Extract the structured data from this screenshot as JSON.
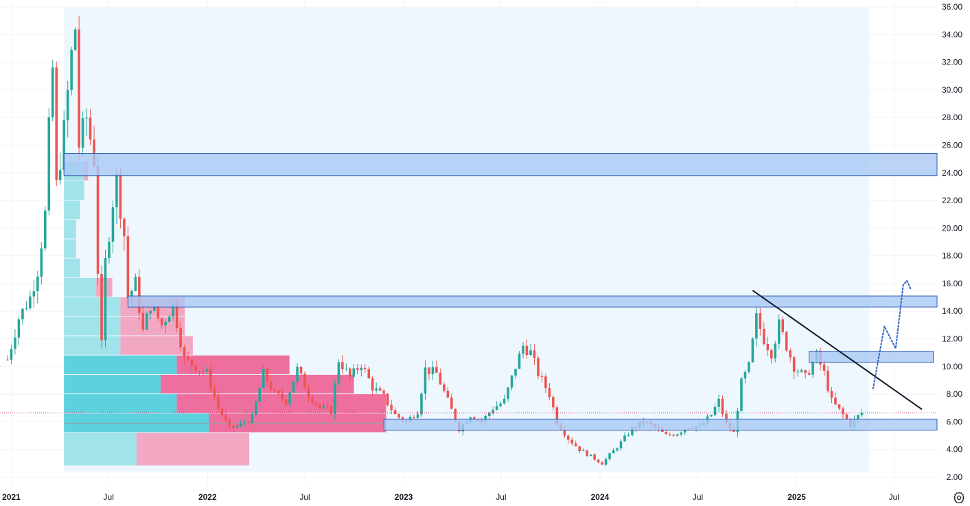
{
  "colors": {
    "up": "#26a69a",
    "down": "#ef5350",
    "zone_fill": "#a9c8f5",
    "zone_border": "#2f5fb3",
    "trendline": "#131722",
    "projection": "#3a6fc9",
    "grid": "#f0f3fa",
    "vp_up": "#5ed1de",
    "vp_down": "#ee6f9e",
    "vp_up_light": "#a0e3ea",
    "vp_down_light": "#f2a7c3",
    "range_shade": "#eef7fd"
  },
  "icons": {
    "settings": "gear-icon"
  },
  "chart_data": {
    "type": "candlestick",
    "timeframe": "weekly",
    "y_axis": {
      "min": 2,
      "max": 36,
      "ticks": [
        "2.00",
        "4.00",
        "6.00",
        "8.00",
        "10.00",
        "12.00",
        "14.00",
        "16.00",
        "18.00",
        "20.00",
        "22.00",
        "24.00",
        "26.00",
        "28.00",
        "30.00",
        "32.00",
        "34.00",
        "36.00"
      ]
    },
    "x_axis": {
      "range": [
        "2020-12-11",
        "2025-09-19"
      ],
      "ticks": [
        {
          "date": "2021-01-01",
          "label": "2021",
          "year": true
        },
        {
          "date": "2021-07-01",
          "label": "Jul",
          "year": false
        },
        {
          "date": "2022-01-01",
          "label": "2022",
          "year": true
        },
        {
          "date": "2022-07-01",
          "label": "Jul",
          "year": false
        },
        {
          "date": "2023-01-01",
          "label": "2023",
          "year": true
        },
        {
          "date": "2023-07-01",
          "label": "Jul",
          "year": false
        },
        {
          "date": "2024-01-01",
          "label": "2024",
          "year": true
        },
        {
          "date": "2024-07-01",
          "label": "Jul",
          "year": false
        },
        {
          "date": "2025-01-01",
          "label": "2025",
          "year": true
        },
        {
          "date": "2025-07-01",
          "label": "Jul",
          "year": false
        }
      ]
    },
    "last_price": 6.65,
    "price_path": [
      [
        "2020-12-25",
        10.5
      ],
      [
        "2021-01-15",
        13.5
      ],
      [
        "2021-02-05",
        15
      ],
      [
        "2021-02-19",
        17
      ],
      [
        "2021-03-05",
        21
      ],
      [
        "2021-03-12",
        27
      ],
      [
        "2021-03-19",
        31.5
      ],
      [
        "2021-03-26",
        23
      ],
      [
        "2021-04-09",
        27
      ],
      [
        "2021-04-23",
        32.5
      ],
      [
        "2021-04-30",
        34.5
      ],
      [
        "2021-05-07",
        26
      ],
      [
        "2021-05-21",
        28
      ],
      [
        "2021-06-04",
        25
      ],
      [
        "2021-06-11",
        17
      ],
      [
        "2021-06-18",
        11.5
      ],
      [
        "2021-06-25",
        17.5
      ],
      [
        "2021-07-09",
        22
      ],
      [
        "2021-07-16",
        23.5
      ],
      [
        "2021-07-30",
        19.5
      ],
      [
        "2021-08-06",
        15
      ],
      [
        "2021-08-20",
        16
      ],
      [
        "2021-09-03",
        12.5
      ],
      [
        "2021-09-17",
        14.5
      ],
      [
        "2021-10-08",
        13
      ],
      [
        "2021-10-29",
        14.5
      ],
      [
        "2021-11-19",
        10.5
      ],
      [
        "2021-12-10",
        10
      ],
      [
        "2021-12-31",
        9.5
      ],
      [
        "2022-01-21",
        7
      ],
      [
        "2022-02-11",
        5.5
      ],
      [
        "2022-03-04",
        5.8
      ],
      [
        "2022-03-25",
        6.3
      ],
      [
        "2022-04-15",
        9.5
      ],
      [
        "2022-05-06",
        8
      ],
      [
        "2022-05-27",
        7.5
      ],
      [
        "2022-06-17",
        9.8
      ],
      [
        "2022-07-08",
        8
      ],
      [
        "2022-07-29",
        7
      ],
      [
        "2022-08-19",
        6.8
      ],
      [
        "2022-09-02",
        10.5
      ],
      [
        "2022-09-23",
        9.2
      ],
      [
        "2022-10-14",
        10.2
      ],
      [
        "2022-11-04",
        8.5
      ],
      [
        "2022-11-25",
        7.8
      ],
      [
        "2022-12-16",
        6.5
      ],
      [
        "2023-01-06",
        6
      ],
      [
        "2023-01-27",
        6.8
      ],
      [
        "2023-02-10",
        9.8
      ],
      [
        "2023-03-03",
        9.5
      ],
      [
        "2023-03-24",
        7.5
      ],
      [
        "2023-04-14",
        5.5
      ],
      [
        "2023-05-05",
        6.5
      ],
      [
        "2023-05-26",
        6
      ],
      [
        "2023-06-16",
        7
      ],
      [
        "2023-07-07",
        7.5
      ],
      [
        "2023-07-28",
        10
      ],
      [
        "2023-08-11",
        11.5
      ],
      [
        "2023-08-25",
        11
      ],
      [
        "2023-09-08",
        9.5
      ],
      [
        "2023-09-29",
        8
      ],
      [
        "2023-10-13",
        6
      ],
      [
        "2023-11-03",
        4.8
      ],
      [
        "2023-11-24",
        4
      ],
      [
        "2023-12-15",
        3.5
      ],
      [
        "2024-01-05",
        3
      ],
      [
        "2024-01-19",
        3.6
      ],
      [
        "2024-02-09",
        4.5
      ],
      [
        "2024-03-01",
        5.5
      ],
      [
        "2024-03-22",
        6
      ],
      [
        "2024-04-12",
        5.6
      ],
      [
        "2024-05-03",
        5
      ],
      [
        "2024-05-24",
        5.2
      ],
      [
        "2024-06-14",
        5.7
      ],
      [
        "2024-07-05",
        5.6
      ],
      [
        "2024-07-26",
        6.5
      ],
      [
        "2024-08-09",
        7.5
      ],
      [
        "2024-08-23",
        5.8
      ],
      [
        "2024-09-06",
        5.2
      ],
      [
        "2024-09-20",
        8.8
      ],
      [
        "2024-10-04",
        10
      ],
      [
        "2024-10-18",
        13.5
      ],
      [
        "2024-11-01",
        12
      ],
      [
        "2024-11-15",
        11
      ],
      [
        "2024-11-29",
        13
      ],
      [
        "2024-12-13",
        11.5
      ],
      [
        "2024-12-27",
        10
      ],
      [
        "2025-01-17",
        9.2
      ],
      [
        "2025-02-07",
        10.8
      ],
      [
        "2025-02-21",
        9.5
      ],
      [
        "2025-03-07",
        7.5
      ],
      [
        "2025-03-28",
        6.5
      ],
      [
        "2025-04-11",
        5.8
      ],
      [
        "2025-04-25",
        6.4
      ],
      [
        "2025-05-02",
        6.65
      ]
    ],
    "zones": [
      {
        "from": "2021-04-09",
        "to": "2025-09-19",
        "low": 23.8,
        "high": 25.4
      },
      {
        "from": "2021-08-06",
        "to": "2025-09-19",
        "low": 14.3,
        "high": 15.1
      },
      {
        "from": "2025-01-24",
        "to": "2025-09-12",
        "low": 10.3,
        "high": 11.1
      },
      {
        "from": "2022-11-25",
        "to": "2025-09-19",
        "low": 5.4,
        "high": 6.2
      }
    ],
    "trendline": [
      [
        "2024-10-11",
        15.5
      ],
      [
        "2025-08-22",
        6.9
      ]
    ],
    "projection": [
      [
        "2025-05-23",
        8.4
      ],
      [
        "2025-06-13",
        12.9
      ],
      [
        "2025-07-04",
        11.3
      ],
      [
        "2025-07-18",
        15.9
      ],
      [
        "2025-07-25",
        16.2
      ],
      [
        "2025-08-01",
        15.6
      ]
    ],
    "volume_profile": {
      "range_shade": {
        "from": "2021-04-09",
        "to": "2025-05-16"
      },
      "rows": [
        {
          "low": 2.8,
          "high": 5.2,
          "up": 0.09,
          "down": 0.14,
          "light": true
        },
        {
          "low": 5.2,
          "high": 6.6,
          "up": 0.18,
          "down": 0.22,
          "light": false
        },
        {
          "low": 6.6,
          "high": 8.0,
          "up": 0.14,
          "down": 0.26,
          "light": false
        },
        {
          "low": 8.0,
          "high": 9.4,
          "up": 0.12,
          "down": 0.24,
          "light": false
        },
        {
          "low": 9.4,
          "high": 10.8,
          "up": 0.14,
          "down": 0.14,
          "light": false
        },
        {
          "low": 10.8,
          "high": 12.2,
          "up": 0.07,
          "down": 0.09,
          "light": true
        },
        {
          "low": 12.2,
          "high": 13.6,
          "up": 0.07,
          "down": 0.08,
          "light": true
        },
        {
          "low": 13.6,
          "high": 15.0,
          "up": 0.07,
          "down": 0.08,
          "light": true
        },
        {
          "low": 15.0,
          "high": 16.4,
          "up": 0.04,
          "down": 0.02,
          "light": true
        },
        {
          "low": 16.4,
          "high": 17.8,
          "up": 0.02,
          "down": 0.0,
          "light": true
        },
        {
          "low": 17.8,
          "high": 19.2,
          "up": 0.015,
          "down": 0.0,
          "light": true
        },
        {
          "low": 19.2,
          "high": 20.6,
          "up": 0.015,
          "down": 0.0,
          "light": true
        },
        {
          "low": 20.6,
          "high": 22.0,
          "up": 0.02,
          "down": 0.0,
          "light": true
        },
        {
          "low": 22.0,
          "high": 23.4,
          "up": 0.025,
          "down": 0.0,
          "light": true
        },
        {
          "low": 23.4,
          "high": 24.8,
          "up": 0.025,
          "down": 0.005,
          "light": true
        }
      ],
      "poc_price": 5.9,
      "poc_to": "2022-11-25"
    }
  }
}
